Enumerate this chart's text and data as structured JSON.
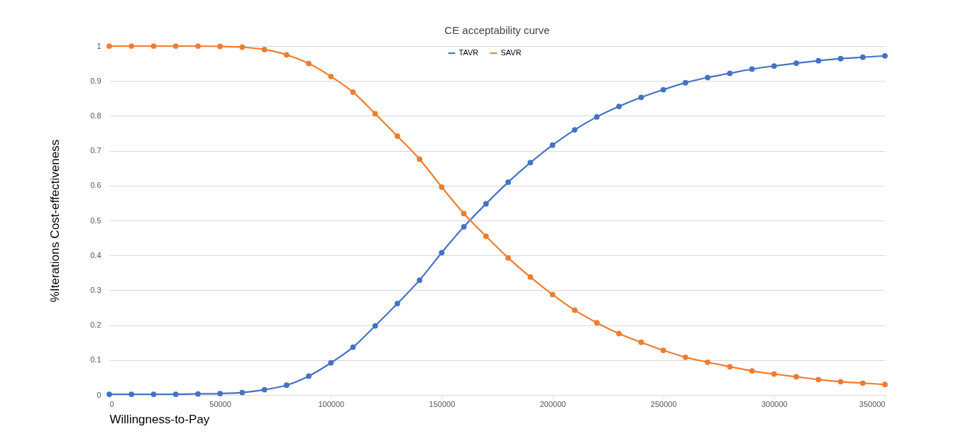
{
  "chart_data": {
    "type": "line",
    "title": "CE acceptability curve",
    "xlabel": "Willingness-to-Pay",
    "ylabel": "%Iterations Cost-effectiveness",
    "x": [
      0,
      10000,
      20000,
      30000,
      40000,
      50000,
      60000,
      70000,
      80000,
      90000,
      100000,
      110000,
      120000,
      130000,
      140000,
      150000,
      160000,
      170000,
      180000,
      190000,
      200000,
      210000,
      220000,
      230000,
      240000,
      250000,
      260000,
      270000,
      280000,
      290000,
      300000,
      310000,
      320000,
      330000,
      340000,
      350000
    ],
    "series": [
      {
        "name": "TAVR",
        "color": "#4472c4",
        "values": [
          0.002,
          0.002,
          0.002,
          0.002,
          0.003,
          0.004,
          0.007,
          0.015,
          0.028,
          0.054,
          0.092,
          0.137,
          0.198,
          0.262,
          0.329,
          0.408,
          0.482,
          0.548,
          0.61,
          0.666,
          0.716,
          0.76,
          0.797,
          0.827,
          0.853,
          0.875,
          0.895,
          0.91,
          0.922,
          0.934,
          0.943,
          0.951,
          0.958,
          0.964,
          0.968,
          0.972
        ]
      },
      {
        "name": "SAVR",
        "color": "#ed7d31",
        "values": [
          1,
          1,
          1,
          1,
          1,
          0.999,
          0.997,
          0.99,
          0.975,
          0.95,
          0.913,
          0.868,
          0.806,
          0.742,
          0.676,
          0.596,
          0.52,
          0.455,
          0.393,
          0.338,
          0.288,
          0.243,
          0.207,
          0.176,
          0.151,
          0.128,
          0.108,
          0.094,
          0.081,
          0.069,
          0.06,
          0.052,
          0.044,
          0.038,
          0.034,
          0.03
        ]
      }
    ],
    "xlim": [
      0,
      350000
    ],
    "xticks": [
      0,
      50000,
      100000,
      150000,
      200000,
      250000,
      300000,
      350000
    ],
    "ylim": [
      0,
      1
    ],
    "yticks": [
      0,
      0.1,
      0.2,
      0.3,
      0.4,
      0.5,
      0.6,
      0.7,
      0.8,
      0.9,
      1
    ],
    "grid": "y",
    "legend": "top",
    "marker": "circle",
    "line_style": "solid"
  }
}
